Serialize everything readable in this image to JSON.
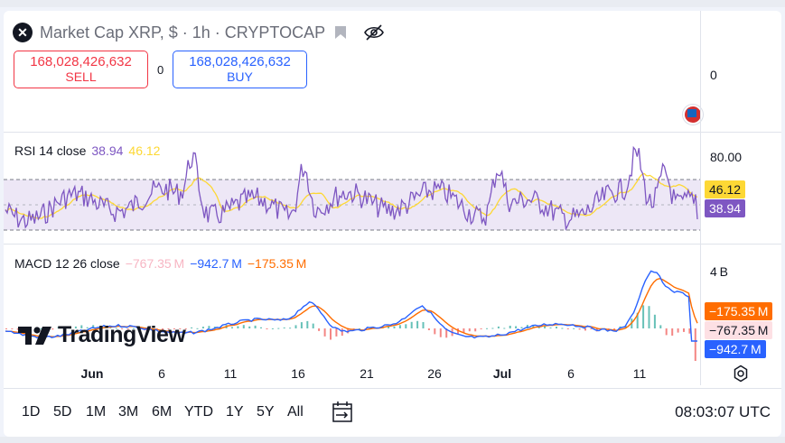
{
  "header": {
    "symbol_icon": "xrp-logo-icon",
    "title": "Market Cap XRP, $ · 1h · CRYPTOCAP"
  },
  "trade": {
    "sell_price": "168,028,426,632",
    "sell_label": "SELL",
    "spread": "0",
    "buy_price": "168,028,426,632",
    "buy_label": "BUY"
  },
  "price_axis": {
    "zero_label": "0"
  },
  "rsi": {
    "label": "RSI 14 close",
    "value_rsi": "38.94",
    "value_ma": "46.12",
    "axis_80": "80.00",
    "badge_ma": "46.12",
    "badge_rsi": "38.94"
  },
  "macd": {
    "label": "MACD 12 26 close",
    "value_hist": "−767.35 M",
    "value_macd": "−942.7 M",
    "value_signal": "−175.35 M",
    "axis_4b": "4 B",
    "badge_signal": "−175.35 M",
    "badge_hist": "−767.35 M",
    "badge_macd": "−942.7 M"
  },
  "branding": {
    "logo_text": "TradingView"
  },
  "time_axis": {
    "ticks": [
      {
        "label": "Jun",
        "bold": true
      },
      {
        "label": "6",
        "bold": false
      },
      {
        "label": "11",
        "bold": false
      },
      {
        "label": "16",
        "bold": false
      },
      {
        "label": "21",
        "bold": false
      },
      {
        "label": "26",
        "bold": false
      },
      {
        "label": "Jul",
        "bold": true
      },
      {
        "label": "6",
        "bold": false
      },
      {
        "label": "11",
        "bold": false
      }
    ]
  },
  "toolbar": {
    "ranges": [
      "1D",
      "5D",
      "1M",
      "3M",
      "6M",
      "YTD",
      "1Y",
      "5Y",
      "All"
    ],
    "clock": "08:03:07 UTC"
  },
  "colors": {
    "rsi_line": "#7e57c2",
    "rsi_ma": "#fdd835",
    "rsi_band": "#ede7f6",
    "macd_line": "#2962ff",
    "signal_line": "#ff6d00",
    "hist_pos": "#26a69a",
    "hist_neg": "#ef5350"
  }
}
